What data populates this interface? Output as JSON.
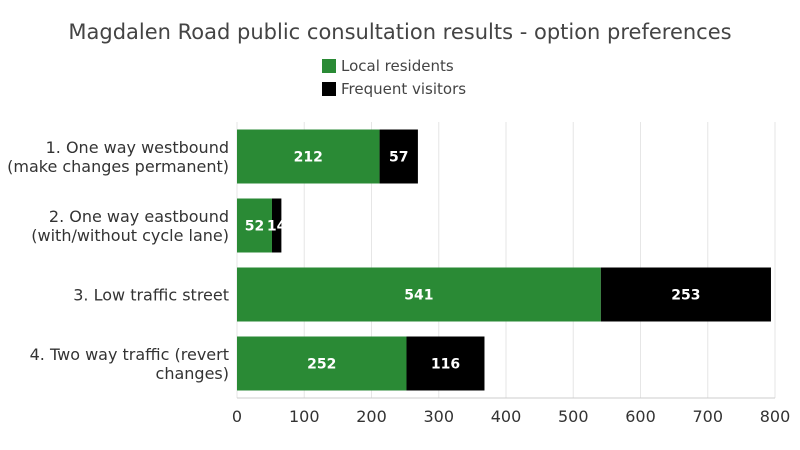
{
  "chart_data": {
    "type": "bar",
    "orientation": "horizontal",
    "stacked": true,
    "title": "Magdalen Road public consultation results - option preferences",
    "categories": [
      [
        "1. One way westbound",
        "(make changes permanent)"
      ],
      [
        "2. One way eastbound",
        "(with/without cycle lane)"
      ],
      [
        "3. Low traffic street"
      ],
      [
        "4. Two way traffic (revert",
        "changes)"
      ]
    ],
    "series": [
      {
        "name": "Local residents",
        "color": "#2a8a35",
        "values": [
          212,
          52,
          541,
          252
        ]
      },
      {
        "name": "Frequent visitors",
        "color": "#000000",
        "values": [
          57,
          14,
          253,
          116
        ]
      }
    ],
    "xlim": [
      0,
      800
    ],
    "xticks": [
      0,
      100,
      200,
      300,
      400,
      500,
      600,
      700,
      800
    ],
    "grid": true,
    "legend_position": "top-center"
  }
}
